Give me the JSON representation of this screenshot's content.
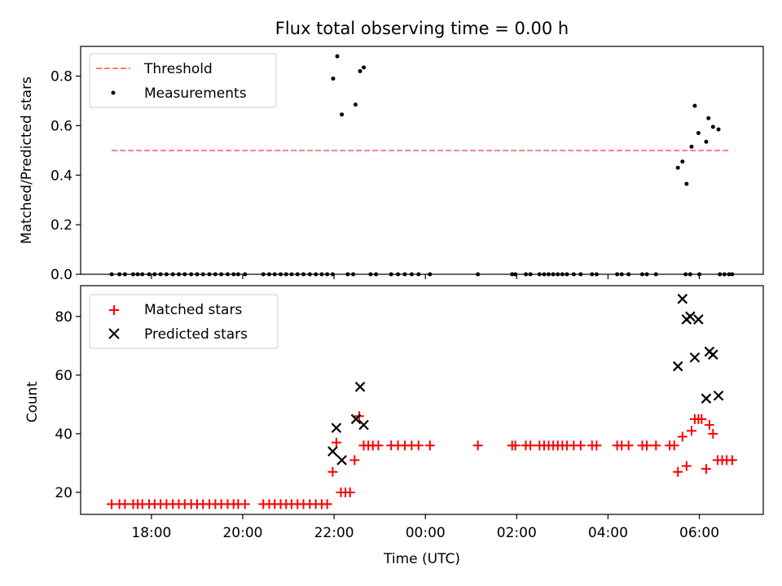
{
  "chart_data": [
    {
      "type": "scatter",
      "title": "Flux total observing time = 0.00 h",
      "ylabel": "Matched/Predicted stars",
      "xlabel": "",
      "ylim": [
        0.0,
        0.92
      ],
      "yticks": [
        0.0,
        0.2,
        0.4,
        0.6,
        0.8
      ],
      "ytick_labels": [
        "0.0",
        "0.2",
        "0.4",
        "0.6",
        "0.8"
      ],
      "grid": false,
      "legend": "upper-left",
      "threshold": {
        "name": "Threshold",
        "y": 0.5,
        "x_start": 17.13,
        "x_end": 30.68,
        "color": "#ff8080",
        "style": "dashed"
      },
      "series": [
        {
          "name": "Measurements",
          "marker": "dot",
          "color": "#000000",
          "points": [
            [
              17.13,
              0
            ],
            [
              17.3,
              0
            ],
            [
              17.42,
              0
            ],
            [
              17.6,
              0
            ],
            [
              17.7,
              0
            ],
            [
              17.8,
              0
            ],
            [
              17.95,
              0
            ],
            [
              18.07,
              0
            ],
            [
              18.2,
              0
            ],
            [
              18.33,
              0
            ],
            [
              18.47,
              0
            ],
            [
              18.6,
              0
            ],
            [
              18.73,
              0
            ],
            [
              18.87,
              0
            ],
            [
              19.0,
              0
            ],
            [
              19.13,
              0
            ],
            [
              19.27,
              0
            ],
            [
              19.4,
              0
            ],
            [
              19.53,
              0
            ],
            [
              19.67,
              0
            ],
            [
              19.8,
              0
            ],
            [
              19.9,
              0
            ],
            [
              20.05,
              0
            ],
            [
              20.45,
              0
            ],
            [
              20.58,
              0
            ],
            [
              20.7,
              0
            ],
            [
              20.83,
              0
            ],
            [
              20.95,
              0
            ],
            [
              21.07,
              0
            ],
            [
              21.2,
              0
            ],
            [
              21.33,
              0
            ],
            [
              21.47,
              0
            ],
            [
              21.6,
              0
            ],
            [
              21.73,
              0
            ],
            [
              21.85,
              0
            ],
            [
              21.97,
              0
            ],
            [
              22.3,
              0
            ],
            [
              22.42,
              0
            ],
            [
              22.8,
              0
            ],
            [
              22.92,
              0
            ],
            [
              23.25,
              0
            ],
            [
              23.4,
              0
            ],
            [
              23.55,
              0
            ],
            [
              23.7,
              0
            ],
            [
              23.85,
              0
            ],
            [
              24.1,
              0
            ],
            [
              25.15,
              0
            ],
            [
              25.9,
              0
            ],
            [
              25.97,
              0
            ],
            [
              26.2,
              0
            ],
            [
              26.3,
              0
            ],
            [
              26.5,
              0
            ],
            [
              26.6,
              0
            ],
            [
              26.7,
              0
            ],
            [
              26.8,
              0
            ],
            [
              26.9,
              0
            ],
            [
              27.0,
              0
            ],
            [
              27.1,
              0
            ],
            [
              27.25,
              0
            ],
            [
              27.4,
              0
            ],
            [
              27.65,
              0
            ],
            [
              27.75,
              0
            ],
            [
              28.2,
              0
            ],
            [
              28.3,
              0
            ],
            [
              28.45,
              0
            ],
            [
              28.75,
              0
            ],
            [
              28.85,
              0
            ],
            [
              29.05,
              0
            ],
            [
              29.7,
              0
            ],
            [
              29.8,
              0
            ],
            [
              30.0,
              0
            ],
            [
              30.45,
              0
            ],
            [
              30.55,
              0
            ],
            [
              30.65,
              0
            ],
            [
              30.72,
              0
            ],
            [
              21.98,
              0.79
            ],
            [
              22.07,
              0.88
            ],
            [
              22.17,
              0.645
            ],
            [
              22.47,
              0.685
            ],
            [
              22.57,
              0.82
            ],
            [
              22.65,
              0.835
            ],
            [
              29.53,
              0.43
            ],
            [
              29.63,
              0.455
            ],
            [
              29.72,
              0.365
            ],
            [
              29.83,
              0.515
            ],
            [
              29.9,
              0.68
            ],
            [
              29.98,
              0.57
            ],
            [
              30.15,
              0.535
            ],
            [
              30.2,
              0.63
            ],
            [
              30.3,
              0.595
            ],
            [
              30.42,
              0.585
            ]
          ]
        }
      ]
    },
    {
      "type": "scatter",
      "title": "",
      "ylabel": "Count",
      "xlabel": "Time (UTC)",
      "ylim": [
        12.5,
        90.5
      ],
      "yticks": [
        20,
        40,
        60,
        80
      ],
      "ytick_labels": [
        "20",
        "40",
        "60",
        "80"
      ],
      "grid": false,
      "legend": "upper-left",
      "series": [
        {
          "name": "Matched stars",
          "marker": "plus",
          "color": "#ff0000",
          "points": [
            [
              17.13,
              16
            ],
            [
              17.3,
              16
            ],
            [
              17.42,
              16
            ],
            [
              17.6,
              16
            ],
            [
              17.7,
              16
            ],
            [
              17.8,
              16
            ],
            [
              17.95,
              16
            ],
            [
              18.07,
              16
            ],
            [
              18.2,
              16
            ],
            [
              18.33,
              16
            ],
            [
              18.47,
              16
            ],
            [
              18.6,
              16
            ],
            [
              18.73,
              16
            ],
            [
              18.87,
              16
            ],
            [
              19.0,
              16
            ],
            [
              19.13,
              16
            ],
            [
              19.27,
              16
            ],
            [
              19.4,
              16
            ],
            [
              19.53,
              16
            ],
            [
              19.67,
              16
            ],
            [
              19.8,
              16
            ],
            [
              19.9,
              16
            ],
            [
              20.05,
              16
            ],
            [
              20.45,
              16
            ],
            [
              20.58,
              16
            ],
            [
              20.7,
              16
            ],
            [
              20.83,
              16
            ],
            [
              20.95,
              16
            ],
            [
              21.07,
              16
            ],
            [
              21.2,
              16
            ],
            [
              21.33,
              16
            ],
            [
              21.47,
              16
            ],
            [
              21.6,
              16
            ],
            [
              21.73,
              16
            ],
            [
              21.85,
              16
            ],
            [
              21.97,
              27
            ],
            [
              22.05,
              37
            ],
            [
              22.15,
              20
            ],
            [
              22.25,
              20
            ],
            [
              22.35,
              20
            ],
            [
              22.45,
              31
            ],
            [
              22.55,
              46
            ],
            [
              22.65,
              36
            ],
            [
              22.75,
              36
            ],
            [
              22.85,
              36
            ],
            [
              22.97,
              36
            ],
            [
              23.25,
              36
            ],
            [
              23.4,
              36
            ],
            [
              23.55,
              36
            ],
            [
              23.7,
              36
            ],
            [
              23.85,
              36
            ],
            [
              24.1,
              36
            ],
            [
              25.15,
              36
            ],
            [
              25.9,
              36
            ],
            [
              25.97,
              36
            ],
            [
              26.2,
              36
            ],
            [
              26.3,
              36
            ],
            [
              26.5,
              36
            ],
            [
              26.6,
              36
            ],
            [
              26.7,
              36
            ],
            [
              26.8,
              36
            ],
            [
              26.9,
              36
            ],
            [
              27.0,
              36
            ],
            [
              27.1,
              36
            ],
            [
              27.25,
              36
            ],
            [
              27.4,
              36
            ],
            [
              27.65,
              36
            ],
            [
              27.75,
              36
            ],
            [
              28.2,
              36
            ],
            [
              28.3,
              36
            ],
            [
              28.45,
              36
            ],
            [
              28.75,
              36
            ],
            [
              28.85,
              36
            ],
            [
              29.05,
              36
            ],
            [
              29.35,
              36
            ],
            [
              29.45,
              36
            ],
            [
              29.53,
              27
            ],
            [
              29.63,
              39
            ],
            [
              29.72,
              29
            ],
            [
              29.83,
              41
            ],
            [
              29.9,
              45
            ],
            [
              29.98,
              45
            ],
            [
              30.05,
              45
            ],
            [
              30.15,
              28
            ],
            [
              30.22,
              43
            ],
            [
              30.3,
              40
            ],
            [
              30.4,
              31
            ],
            [
              30.5,
              31
            ],
            [
              30.6,
              31
            ],
            [
              30.72,
              31
            ]
          ]
        },
        {
          "name": "Predicted stars",
          "marker": "x",
          "color": "#000000",
          "points": [
            [
              21.97,
              34
            ],
            [
              22.05,
              42
            ],
            [
              22.17,
              31
            ],
            [
              22.48,
              45
            ],
            [
              22.57,
              56
            ],
            [
              22.65,
              43
            ],
            [
              29.53,
              63
            ],
            [
              29.63,
              86
            ],
            [
              29.72,
              79
            ],
            [
              29.8,
              80
            ],
            [
              29.9,
              66
            ],
            [
              29.98,
              79
            ],
            [
              30.15,
              52
            ],
            [
              30.22,
              68
            ],
            [
              30.3,
              67
            ],
            [
              30.42,
              53
            ]
          ]
        }
      ],
      "xticks": [
        18,
        20,
        22,
        24,
        26,
        28,
        30
      ],
      "xtick_labels": [
        "18:00",
        "20:00",
        "22:00",
        "00:00",
        "02:00",
        "04:00",
        "06:00"
      ],
      "xlim": [
        16.45,
        31.4
      ]
    }
  ]
}
